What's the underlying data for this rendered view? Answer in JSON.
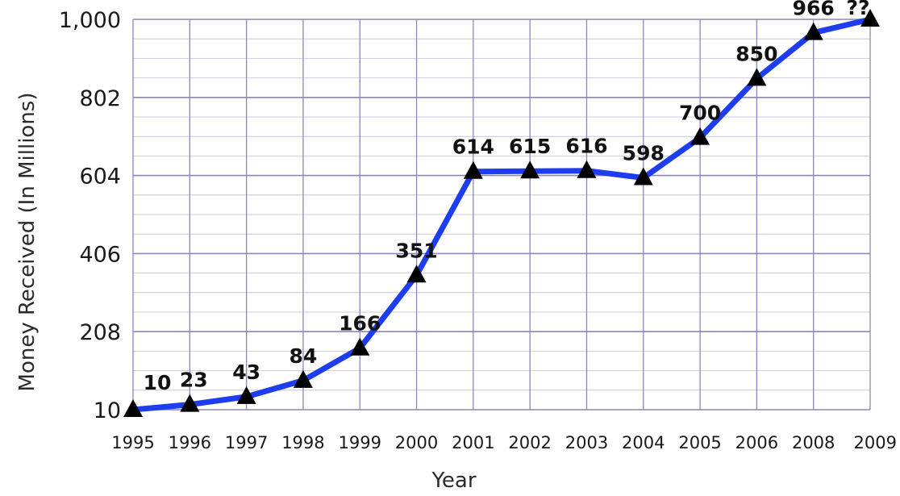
{
  "chart_data": {
    "type": "line",
    "title": "",
    "xlabel": "Year",
    "ylabel": "Money Received (In Millions)",
    "categories": [
      "1995",
      "1996",
      "1997",
      "1998",
      "1999",
      "2000",
      "2001",
      "2002",
      "2003",
      "2004",
      "2005",
      "2006",
      "2008",
      "2009"
    ],
    "series": [
      {
        "values": [
          10,
          23,
          43,
          84,
          166,
          351,
          614,
          615,
          616,
          598,
          700,
          850,
          966,
          1000
        ]
      }
    ],
    "data_labels": [
      "10",
      "23",
      "43",
      "84",
      "166",
      "351",
      "614",
      "615",
      "616",
      "598",
      "700",
      "850",
      "966",
      "??"
    ],
    "y_ticks": [
      "10",
      "208",
      "406",
      "604",
      "802",
      "1,000"
    ],
    "ylim": [
      10,
      1000
    ],
    "grid": true,
    "line_color": "#1f3df0",
    "marker": "triangle",
    "marker_color": "#000000",
    "grid_color": "#8a88b8"
  }
}
